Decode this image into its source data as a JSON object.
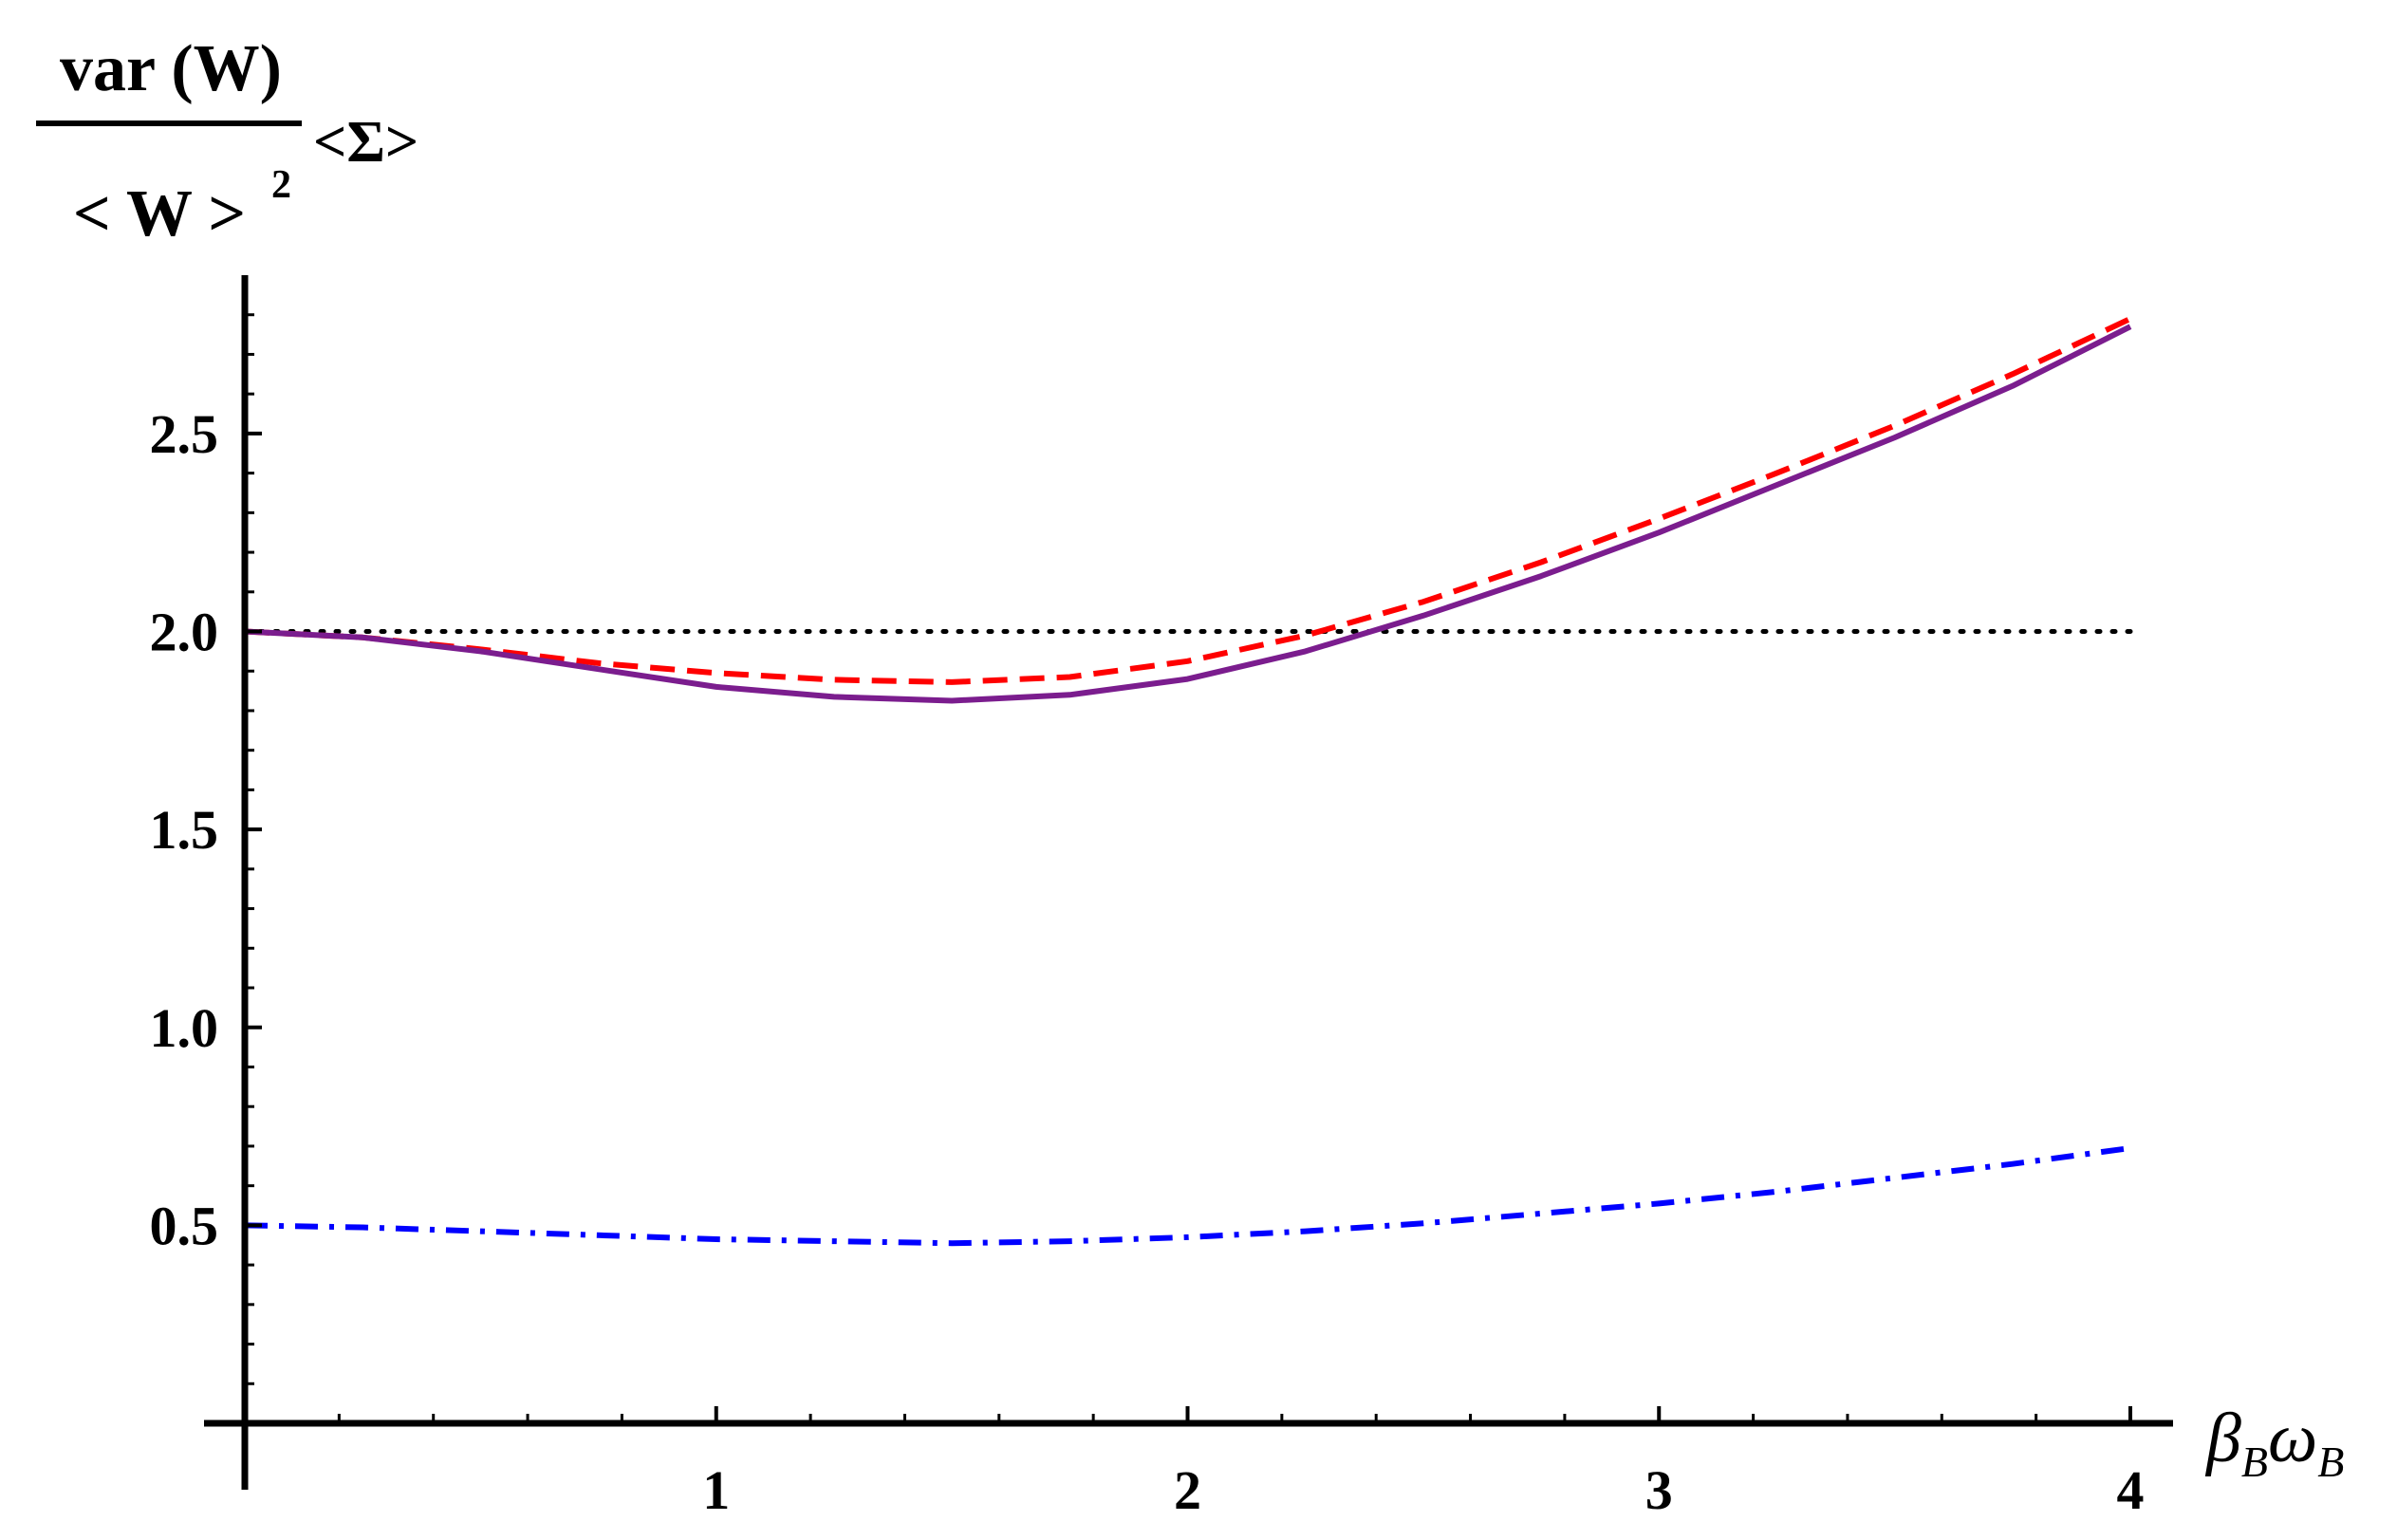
{
  "chart_data": {
    "type": "line",
    "title": "",
    "xlabel": "β_B ω_B",
    "xlabel_parts": {
      "main_1": "β",
      "sub_1": "B",
      "main_2": "ω",
      "sub_2": "B"
    },
    "ylabel": "var(W) / <W>^2 <Σ>",
    "ylabel_parts": {
      "numerator": "var (W)",
      "denominator": "< W >",
      "exponent": "2",
      "suffix": "<Σ>"
    },
    "xlim": [
      0,
      4
    ],
    "ylim": [
      0,
      2.9
    ],
    "x_ticks": [
      1,
      2,
      3,
      4
    ],
    "x_tick_labels": [
      "1",
      "2",
      "3",
      "4"
    ],
    "y_ticks": [
      0.5,
      1.0,
      1.5,
      2.0,
      2.5
    ],
    "y_tick_labels": [
      "0.5",
      "1.0",
      "1.5",
      "2.0",
      "2.5"
    ],
    "grid": false,
    "legend": "none",
    "x": [
      0,
      0.25,
      0.5,
      0.75,
      1.0,
      1.25,
      1.5,
      1.75,
      2.0,
      2.25,
      2.5,
      2.75,
      3.0,
      3.25,
      3.5,
      3.75,
      4.0
    ],
    "series": [
      {
        "style": "solid",
        "color": "#7b1d8e",
        "values": [
          2.0,
          1.985,
          1.95,
          1.905,
          1.86,
          1.835,
          1.825,
          1.84,
          1.88,
          1.95,
          2.04,
          2.14,
          2.25,
          2.37,
          2.49,
          2.62,
          2.77
        ]
      },
      {
        "style": "dashed",
        "color": "#ff0000",
        "values": [
          2.0,
          1.985,
          1.955,
          1.92,
          1.895,
          1.878,
          1.872,
          1.885,
          1.925,
          1.99,
          2.075,
          2.175,
          2.285,
          2.4,
          2.52,
          2.65,
          2.79
        ]
      },
      {
        "style": "dash-dot",
        "color": "#0000ff",
        "values": [
          0.5,
          0.495,
          0.485,
          0.475,
          0.465,
          0.46,
          0.455,
          0.46,
          0.47,
          0.485,
          0.505,
          0.53,
          0.555,
          0.585,
          0.62,
          0.655,
          0.695
        ]
      },
      {
        "style": "dotted",
        "color": "#000000",
        "values": [
          2.0,
          2.0,
          2.0,
          2.0,
          2.0,
          2.0,
          2.0,
          2.0,
          2.0,
          2.0,
          2.0,
          2.0,
          2.0,
          2.0,
          2.0,
          2.0,
          2.0
        ]
      }
    ]
  }
}
